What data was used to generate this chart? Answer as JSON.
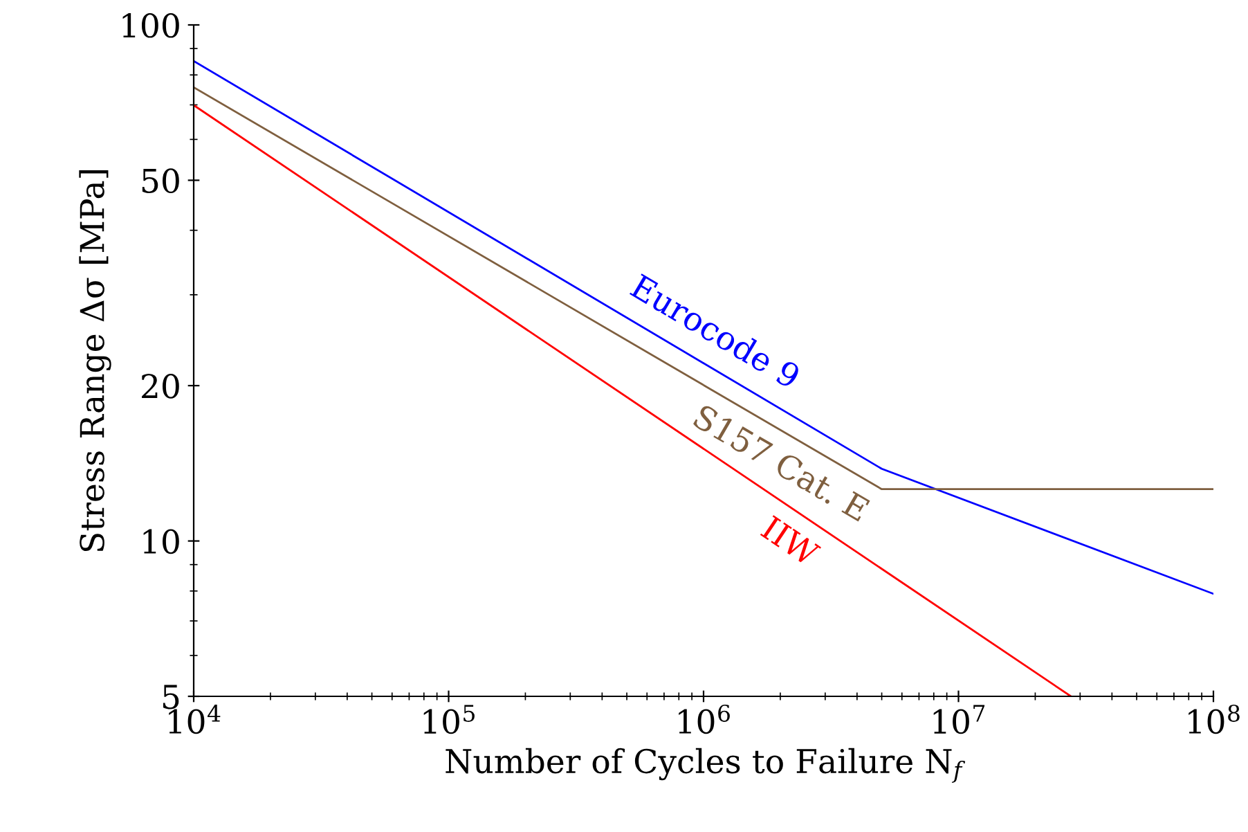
{
  "chart_data": {
    "type": "line",
    "xlabel": "Number of Cycles to Failure N$_{f}$",
    "ylabel": "Stress Range Δσ [MPa]",
    "log": "xy",
    "xlim": [
      10000,
      100000000
    ],
    "ylim": [
      5,
      100
    ],
    "xticks": [
      {
        "value": 10000,
        "label": "10$^{4}$"
      },
      {
        "value": 100000,
        "label": "10$^{5}$"
      },
      {
        "value": 1000000,
        "label": "10$^{6}$"
      },
      {
        "value": 10000000,
        "label": "10$^{7}$"
      },
      {
        "value": 100000000,
        "label": "10$^{8}$"
      }
    ],
    "yticks": [
      5,
      10,
      20,
      50,
      100
    ],
    "grid": false,
    "legend": false,
    "marker": "none",
    "line_style": "solid",
    "series": [
      {
        "name": "Eurocode 9",
        "color": "#0000ff",
        "x": [
          10000,
          5000000,
          100000000
        ],
        "values": [
          85.1,
          13.8,
          7.9
        ]
      },
      {
        "name": "S157 Cat. E",
        "color": "#7f5f3f",
        "x": [
          10000,
          5000000,
          100000000
        ],
        "values": [
          75.7,
          12.6,
          12.6
        ]
      },
      {
        "name": "IIW",
        "color": "#ff0000",
        "x": [
          10000,
          27600000
        ],
        "values": [
          69.9,
          5
        ]
      }
    ]
  }
}
